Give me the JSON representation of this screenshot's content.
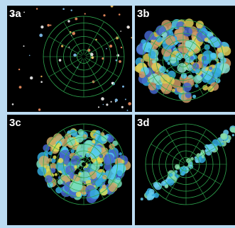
{
  "panels": [
    {
      "label": "3a"
    },
    {
      "label": "3b"
    },
    {
      "label": "3c"
    },
    {
      "label": "3d"
    }
  ]
}
